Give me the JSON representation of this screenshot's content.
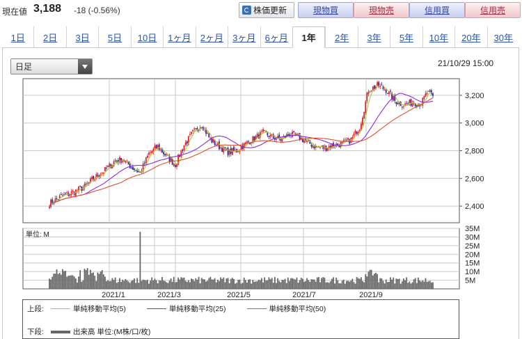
{
  "quote": {
    "label": "現在値",
    "price": "3,188",
    "change": "-18 (-0.56%)"
  },
  "toolbar": {
    "update_label": "株価更新",
    "spot_buy": "現物買",
    "spot_sell": "現物売",
    "margin_buy": "信用買",
    "margin_sell": "信用売"
  },
  "tabs": [
    {
      "label": "1日",
      "active": false
    },
    {
      "label": "2日",
      "active": false
    },
    {
      "label": "3日",
      "active": false
    },
    {
      "label": "5日",
      "active": false
    },
    {
      "label": "10日",
      "active": false
    },
    {
      "label": "1ヶ月",
      "active": false
    },
    {
      "label": "2ヶ月",
      "active": false
    },
    {
      "label": "3ヶ月",
      "active": false
    },
    {
      "label": "6ヶ月",
      "active": false
    },
    {
      "label": "1年",
      "active": true
    },
    {
      "label": "2年",
      "active": false
    },
    {
      "label": "3年",
      "active": false
    },
    {
      "label": "5年",
      "active": false
    },
    {
      "label": "10年",
      "active": false
    },
    {
      "label": "20年",
      "active": false
    },
    {
      "label": "30年",
      "active": false
    }
  ],
  "selector": {
    "value": "日足"
  },
  "timestamp": "21/10/29 15:00",
  "colors": {
    "up": "#e0202a",
    "down": "#2a2a8a",
    "ma5": "#b8c43a",
    "ma25": "#8a2be2",
    "ma50": "#e0502a",
    "volume": "#666666",
    "grid": "#c8c8c8"
  },
  "chart_data": {
    "type": "candlestick",
    "price_ylim": [
      2280,
      3320
    ],
    "price_ticks": [
      "3,200",
      "3,000",
      "2,800",
      "2,600",
      "2,400"
    ],
    "price_tick_values": [
      3200,
      3000,
      2800,
      2600,
      2400
    ],
    "x_labels": [
      "2021/1",
      "2021/3",
      "2021/5",
      "2021/7",
      "2021/9"
    ],
    "volume_unit_label": "単位: M",
    "volume_ylim": [
      0,
      35
    ],
    "volume_ticks": [
      "35M",
      "30M",
      "25M",
      "20M",
      "15M",
      "10M",
      "5M"
    ],
    "volume_tick_values": [
      35,
      30,
      25,
      20,
      15,
      10,
      5
    ],
    "price_path_keypoints": [
      [
        0,
        2420
      ],
      [
        8,
        2470
      ],
      [
        16,
        2500
      ],
      [
        24,
        2540
      ],
      [
        30,
        2600
      ],
      [
        38,
        2660
      ],
      [
        44,
        2720
      ],
      [
        50,
        2740
      ],
      [
        56,
        2680
      ],
      [
        62,
        2640
      ],
      [
        68,
        2780
      ],
      [
        74,
        2830
      ],
      [
        80,
        2760
      ],
      [
        86,
        2700
      ],
      [
        92,
        2840
      ],
      [
        98,
        2930
      ],
      [
        104,
        2990
      ],
      [
        110,
        2880
      ],
      [
        116,
        2830
      ],
      [
        122,
        2790
      ],
      [
        128,
        2800
      ],
      [
        134,
        2850
      ],
      [
        140,
        2890
      ],
      [
        146,
        2930
      ],
      [
        152,
        2900
      ],
      [
        158,
        2880
      ],
      [
        164,
        2920
      ],
      [
        170,
        2900
      ],
      [
        176,
        2860
      ],
      [
        182,
        2830
      ],
      [
        188,
        2820
      ],
      [
        194,
        2840
      ],
      [
        200,
        2850
      ],
      [
        206,
        2880
      ],
      [
        212,
        2970
      ],
      [
        218,
        3240
      ],
      [
        224,
        3270
      ],
      [
        230,
        3240
      ],
      [
        236,
        3160
      ],
      [
        242,
        3130
      ],
      [
        248,
        3150
      ],
      [
        254,
        3140
      ],
      [
        258,
        3220
      ],
      [
        262,
        3188
      ]
    ],
    "volume_spike": {
      "index": 62,
      "value": 33
    },
    "legend": {
      "upper_tag": "上段:",
      "lower_tag": "下段:",
      "ma5": "単純移動平均(5)",
      "ma25": "単純移動平均(25)",
      "ma50": "単純移動平均(50)",
      "volume": "出来高 単位:(M株/口/枚)"
    }
  }
}
